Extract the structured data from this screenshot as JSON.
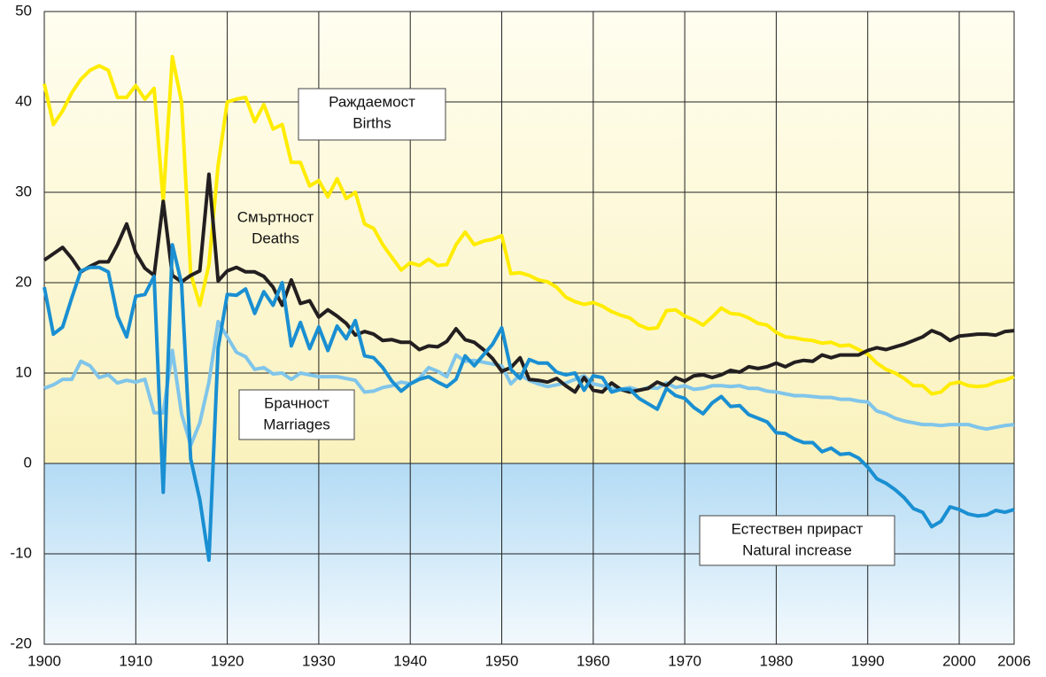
{
  "chart_data": {
    "type": "line",
    "x": [
      1900,
      1901,
      1902,
      1903,
      1904,
      1905,
      1906,
      1907,
      1908,
      1909,
      1910,
      1911,
      1912,
      1913,
      1914,
      1915,
      1916,
      1917,
      1918,
      1919,
      1920,
      1921,
      1922,
      1923,
      1924,
      1925,
      1926,
      1927,
      1928,
      1929,
      1930,
      1931,
      1932,
      1933,
      1934,
      1935,
      1936,
      1937,
      1938,
      1939,
      1940,
      1941,
      1942,
      1943,
      1944,
      1945,
      1946,
      1947,
      1948,
      1949,
      1950,
      1951,
      1952,
      1953,
      1954,
      1955,
      1956,
      1957,
      1958,
      1959,
      1960,
      1961,
      1962,
      1963,
      1964,
      1965,
      1966,
      1967,
      1968,
      1969,
      1970,
      1971,
      1972,
      1973,
      1974,
      1975,
      1976,
      1977,
      1978,
      1979,
      1980,
      1981,
      1982,
      1983,
      1984,
      1985,
      1986,
      1987,
      1988,
      1989,
      1990,
      1991,
      1992,
      1993,
      1994,
      1995,
      1996,
      1997,
      1998,
      1999,
      2000,
      2001,
      2002,
      2003,
      2004,
      2005,
      2006
    ],
    "series": [
      {
        "name": "Births",
        "color": "#ffec00",
        "values": [
          42,
          37.5,
          39,
          41,
          42.5,
          43.5,
          44,
          43.5,
          40.5,
          40.5,
          41.8,
          40.3,
          41.5,
          29,
          45,
          40,
          21,
          17.5,
          22,
          33,
          40,
          40.3,
          40.5,
          37.8,
          39.7,
          37,
          37.5,
          33.3,
          33.3,
          30.7,
          31.3,
          29.5,
          31.5,
          29.3,
          30,
          26.5,
          26,
          24.2,
          22.8,
          21.4,
          22.2,
          21.9,
          22.6,
          21.9,
          22,
          24.2,
          25.6,
          24.2,
          24.6,
          24.8,
          25.2,
          21,
          21.1,
          20.8,
          20.3,
          20.1,
          19.5,
          18.4,
          17.9,
          17.6,
          17.8,
          17.4,
          16.8,
          16.4,
          16.1,
          15.3,
          14.9,
          15,
          16.9,
          17,
          16.3,
          15.9,
          15.3,
          16.2,
          17.2,
          16.6,
          16.5,
          16.1,
          15.5,
          15.3,
          14.5,
          14,
          13.9,
          13.7,
          13.6,
          13.3,
          13.4,
          13,
          13.1,
          12.6,
          12.1,
          11.1,
          10.4,
          10,
          9.4,
          8.6,
          8.6,
          7.7,
          7.9,
          8.8,
          9,
          8.6,
          8.5,
          8.6,
          9,
          9.2,
          9.6
        ]
      },
      {
        "name": "Marriages",
        "color": "#80c5ea",
        "values": [
          8.3,
          8.7,
          9.3,
          9.3,
          11.3,
          10.8,
          9.5,
          9.8,
          8.9,
          9.2,
          9,
          9.3,
          5.6,
          5.6,
          12.5,
          5.5,
          2,
          4.5,
          9,
          15.7,
          14,
          12.3,
          11.8,
          10.4,
          10.6,
          9.9,
          10,
          9.3,
          10,
          9.8,
          9.6,
          9.6,
          9.6,
          9.4,
          9.2,
          7.9,
          8,
          8.4,
          8.6,
          9,
          8.8,
          9.4,
          10.6,
          10.2,
          9.6,
          12,
          11.3,
          11.4,
          11.2,
          11,
          10.8,
          8.8,
          9.8,
          9.2,
          8.8,
          8.5,
          8.7,
          8.9,
          9.3,
          9.7,
          8.8,
          8.6,
          8.3,
          8.2,
          8.4,
          8.1,
          8.4,
          8.3,
          8.9,
          8.4,
          8.6,
          8.2,
          8.3,
          8.6,
          8.6,
          8.5,
          8.6,
          8.3,
          8.3,
          8,
          7.9,
          7.7,
          7.5,
          7.5,
          7.4,
          7.3,
          7.3,
          7.1,
          7.1,
          6.9,
          6.8,
          5.8,
          5.5,
          5,
          4.7,
          4.5,
          4.3,
          4.3,
          4.2,
          4.3,
          4.3,
          4.3,
          4,
          3.8,
          4,
          4.2,
          4.3
        ]
      },
      {
        "name": "Deaths",
        "color": "#231f20",
        "values": [
          22.5,
          23.2,
          23.9,
          22.7,
          21.2,
          21.8,
          22.3,
          22.3,
          24.2,
          26.5,
          23.3,
          21.6,
          20.8,
          29,
          20.8,
          20.1,
          20.8,
          21.3,
          32,
          20.2,
          21.3,
          21.7,
          21.2,
          21.2,
          20.7,
          19.5,
          17.5,
          20.3,
          17.7,
          18,
          16.2,
          17,
          16.3,
          15.5,
          14.2,
          14.6,
          14.3,
          13.6,
          13.7,
          13.4,
          13.4,
          12.6,
          13,
          12.9,
          13.5,
          14.9,
          13.7,
          13.4,
          12.6,
          11.6,
          10.2,
          10.6,
          11.7,
          9.3,
          9.2,
          9,
          9.4,
          8.6,
          7.9,
          9.5,
          8.1,
          7.9,
          8.9,
          8.2,
          7.9,
          8.1,
          8.3,
          9,
          8.6,
          9.5,
          9.1,
          9.7,
          9.8,
          9.5,
          9.8,
          10.3,
          10.1,
          10.7,
          10.5,
          10.7,
          11.1,
          10.7,
          11.2,
          11.4,
          11.3,
          12,
          11.7,
          12,
          12,
          12,
          12.5,
          12.8,
          12.6,
          12.9,
          13.2,
          13.6,
          14,
          14.7,
          14.3,
          13.6,
          14.1,
          14.2,
          14.3,
          14.3,
          14.2,
          14.6,
          14.7
        ]
      },
      {
        "name": "Natural increase",
        "color": "#1a8fd2",
        "values": [
          19.5,
          14.3,
          15.1,
          18.3,
          21.3,
          21.7,
          21.7,
          21.2,
          16.3,
          14,
          18.5,
          18.7,
          20.7,
          -3.2,
          24.2,
          19.9,
          0.5,
          -4,
          -10.7,
          12.8,
          18.7,
          18.6,
          19.3,
          16.6,
          19,
          17.5,
          20,
          13,
          15.6,
          12.7,
          15.1,
          12.5,
          15.2,
          13.8,
          15.8,
          11.9,
          11.7,
          10.6,
          9.1,
          8,
          8.8,
          9.3,
          9.6,
          9,
          8.5,
          9.3,
          11.9,
          10.8,
          12,
          13.2,
          15,
          10.4,
          9.4,
          11.5,
          11.1,
          11.1,
          10.1,
          9.8,
          10,
          8.1,
          9.7,
          9.5,
          7.9,
          8.2,
          8.2,
          7.2,
          6.6,
          6,
          8.3,
          7.5,
          7.2,
          6.2,
          5.5,
          6.7,
          7.4,
          6.3,
          6.4,
          5.4,
          5,
          4.6,
          3.4,
          3.3,
          2.7,
          2.3,
          2.3,
          1.3,
          1.7,
          1,
          1.1,
          0.6,
          -0.4,
          -1.7,
          -2.2,
          -2.9,
          -3.8,
          -5,
          -5.4,
          -7,
          -6.4,
          -4.8,
          -5.1,
          -5.6,
          -5.8,
          -5.7,
          -5.2,
          -5.4,
          -5.1
        ]
      }
    ],
    "annotations": [
      {
        "lines": [
          "Раждаемост",
          "Births"
        ]
      },
      {
        "lines": [
          "Смъртност",
          "Deaths"
        ]
      },
      {
        "lines": [
          "Брачност",
          "Marriages"
        ]
      },
      {
        "lines": [
          "Естествен прираст",
          "Natural increase"
        ]
      }
    ],
    "xlim": [
      1900,
      2006
    ],
    "xticks": [
      1900,
      1910,
      1920,
      1930,
      1940,
      1950,
      1960,
      1970,
      1980,
      1990,
      2000,
      2006
    ],
    "ylim": [
      -20,
      50
    ],
    "yticks": [
      -20,
      -10,
      0,
      10,
      20,
      30,
      40,
      50
    ],
    "grid": true
  }
}
